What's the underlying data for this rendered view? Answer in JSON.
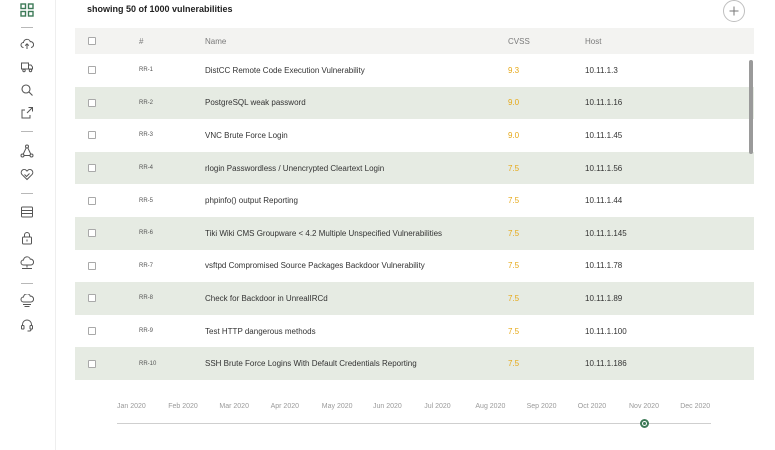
{
  "header": {
    "title": "showing 50 of 1000 vulnerabilities"
  },
  "table": {
    "columns": {
      "number": "#",
      "name": "Name",
      "cvss": "CVSS",
      "host": "Host"
    },
    "rows": [
      {
        "id": "RR-1",
        "name": "DistCC Remote Code Execution Vulnerability",
        "cvss": "9.3",
        "host": "10.11.1.3"
      },
      {
        "id": "RR-2",
        "name": "PostgreSQL weak password",
        "cvss": "9.0",
        "host": "10.11.1.16"
      },
      {
        "id": "RR-3",
        "name": "VNC Brute Force Login",
        "cvss": "9.0",
        "host": "10.11.1.45"
      },
      {
        "id": "RR-4",
        "name": "rlogin Passwordless / Unencrypted Cleartext Login",
        "cvss": "7.5",
        "host": "10.11.1.56"
      },
      {
        "id": "RR-5",
        "name": "phpinfo() output Reporting",
        "cvss": "7.5",
        "host": "10.11.1.44"
      },
      {
        "id": "RR-6",
        "name": "Tiki Wiki CMS Groupware < 4.2 Multiple Unspecified Vulnerabilities",
        "cvss": "7.5",
        "host": "10.11.1.145"
      },
      {
        "id": "RR-7",
        "name": "vsftpd Compromised Source Packages Backdoor Vulnerability",
        "cvss": "7.5",
        "host": "10.11.1.78"
      },
      {
        "id": "RR-8",
        "name": "Check for Backdoor in UnrealIRCd",
        "cvss": "7.5",
        "host": "10.11.1.89"
      },
      {
        "id": "RR-9",
        "name": "Test HTTP dangerous methods",
        "cvss": "7.5",
        "host": "10.11.1.100"
      },
      {
        "id": "RR-10",
        "name": "SSH Brute Force Logins With Default Credentials Reporting",
        "cvss": "7.5",
        "host": "10.11.1.186"
      }
    ]
  },
  "timeline": {
    "months": [
      "Jan 2020",
      "Feb 2020",
      "Mar 2020",
      "Apr 2020",
      "May 2020",
      "Jun 2020",
      "Jul 2020",
      "Aug 2020",
      "Sep 2020",
      "Oct 2020",
      "Nov 2020",
      "Dec 2020"
    ],
    "selected_month": "Nov 2020"
  },
  "colors": {
    "accent": "#3d7a57",
    "cvss": "#e6a817",
    "row_alt": "#e6ebe3"
  }
}
